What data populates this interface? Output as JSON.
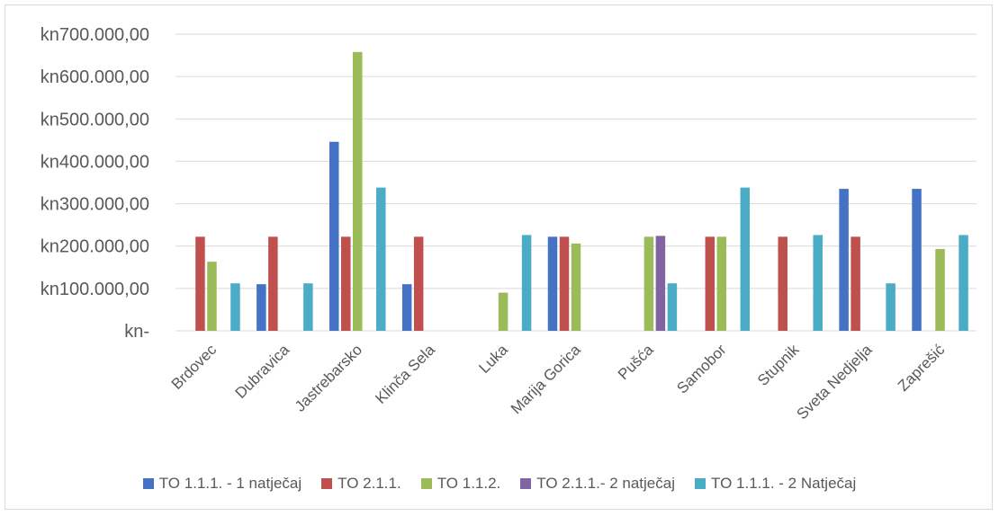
{
  "chart_data": {
    "type": "bar",
    "categories": [
      "Brdovec",
      "Dubravica",
      "Jastrebarsko",
      "Klinča Sela",
      "Luka",
      "Marija Gorica",
      "Pušća",
      "Samobor",
      "Stupnik",
      "Sveta Nedjelja",
      "Zaprešić"
    ],
    "series": [
      {
        "name": "TO 1.1.1. - 1 natječaj",
        "color": "#4472c4",
        "values": [
          0,
          110000,
          446000,
          110000,
          0,
          222000,
          0,
          0,
          0,
          335000,
          335000
        ]
      },
      {
        "name": "TO 2.1.1.",
        "color": "#c0504d",
        "values": [
          222000,
          222000,
          222000,
          222000,
          0,
          222000,
          0,
          222000,
          222000,
          222000,
          0
        ]
      },
      {
        "name": "TO 1.1.2.",
        "color": "#9bbb59",
        "values": [
          163000,
          0,
          658000,
          0,
          90000,
          206000,
          222000,
          222000,
          0,
          0,
          193000
        ]
      },
      {
        "name": "TO 2.1.1.- 2 natječaj",
        "color": "#8064a2",
        "values": [
          0,
          0,
          0,
          0,
          0,
          0,
          224000,
          0,
          0,
          0,
          0
        ]
      },
      {
        "name": "TO 1.1.1. - 2 Natječaj",
        "color": "#4bacc6",
        "values": [
          112000,
          112000,
          338000,
          0,
          226000,
          0,
          112000,
          338000,
          226000,
          112000,
          226000
        ]
      }
    ],
    "y_ticks": [
      "kn-",
      "kn100.000,00",
      "kn200.000,00",
      "kn300.000,00",
      "kn400.000,00",
      "kn500.000,00",
      "kn600.000,00",
      "kn700.000,00"
    ],
    "y_tick_values": [
      0,
      100000,
      200000,
      300000,
      400000,
      500000,
      600000,
      700000
    ],
    "ylim": [
      0,
      700000
    ],
    "grid": true,
    "legend_position": "bottom"
  }
}
